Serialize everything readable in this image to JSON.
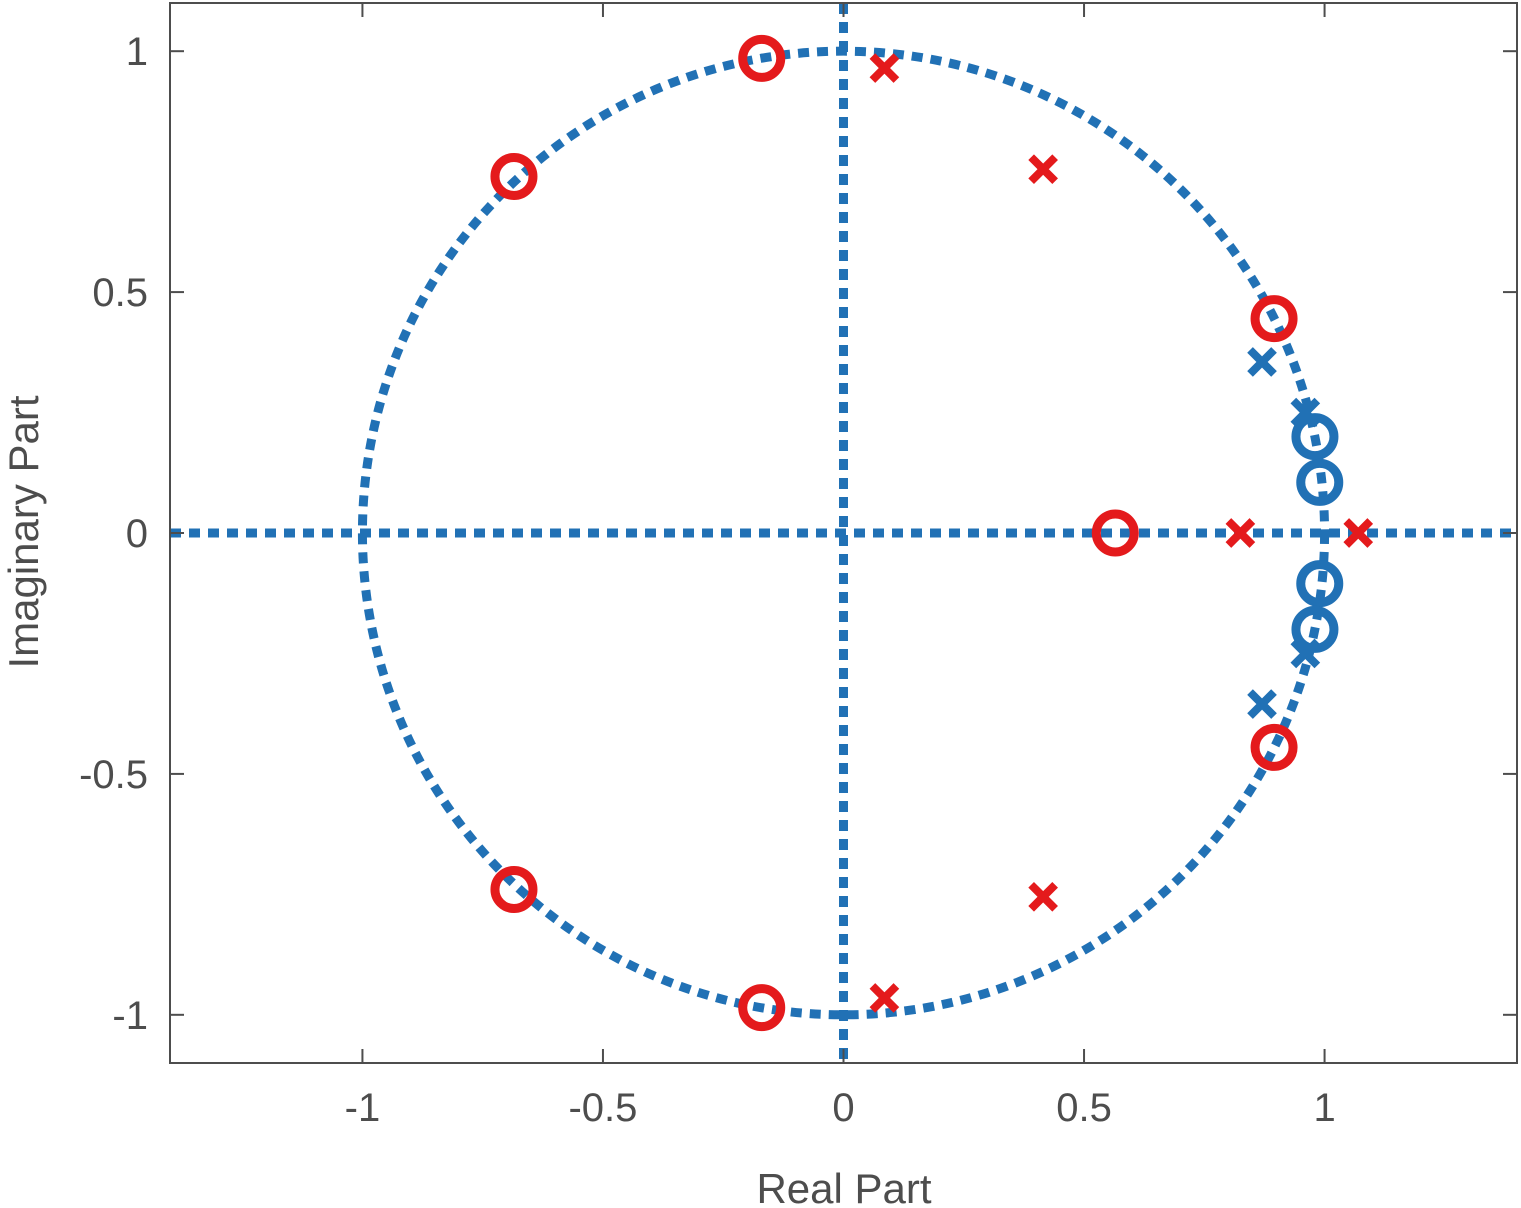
{
  "chart_data": {
    "type": "scatter",
    "title": "",
    "xlabel": "Real Part",
    "ylabel": "Imaginary Part",
    "xlim": [
      -1.4,
      1.4
    ],
    "ylim": [
      -1.1,
      1.1
    ],
    "xticks": [
      -1,
      -0.5,
      0,
      0.5,
      1
    ],
    "xtick_labels": [
      "-1",
      "-0.5",
      "0",
      "0.5",
      "1"
    ],
    "yticks": [
      -1,
      -0.5,
      0,
      0.5,
      1
    ],
    "ytick_labels": [
      "-1",
      "-0.5",
      "0",
      "0.5",
      "1"
    ],
    "grid": false,
    "box": true,
    "unit_circle": true,
    "reference_axes": true,
    "colors": {
      "blue": "#2171b5",
      "red": "#e41a1c",
      "axes": "#4d4d4d"
    },
    "series": [
      {
        "color": "blue",
        "marker": "o",
        "points": [
          [
            0.98,
            0.2
          ],
          [
            0.99,
            0.105
          ],
          [
            0.99,
            -0.105
          ],
          [
            0.98,
            -0.2
          ]
        ]
      },
      {
        "color": "blue",
        "marker": "x",
        "points": [
          [
            0.87,
            0.355
          ],
          [
            0.96,
            0.25
          ],
          [
            0.96,
            -0.25
          ],
          [
            0.87,
            -0.355
          ]
        ]
      },
      {
        "color": "red",
        "marker": "o",
        "points": [
          [
            -0.17,
            0.985
          ],
          [
            -0.685,
            0.74
          ],
          [
            0.895,
            0.445
          ],
          [
            0.565,
            0.0
          ],
          [
            0.895,
            -0.445
          ],
          [
            -0.685,
            -0.74
          ],
          [
            -0.17,
            -0.985
          ]
        ]
      },
      {
        "color": "red",
        "marker": "x",
        "points": [
          [
            0.085,
            0.965
          ],
          [
            0.415,
            0.755
          ],
          [
            0.825,
            0.0
          ],
          [
            1.07,
            0.0
          ],
          [
            0.415,
            -0.755
          ],
          [
            0.085,
            -0.965
          ]
        ]
      }
    ]
  }
}
